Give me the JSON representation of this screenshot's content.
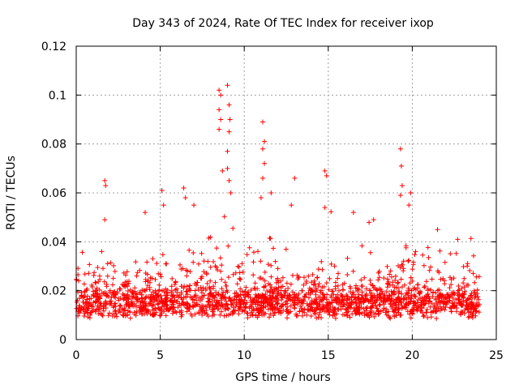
{
  "chart_data": {
    "type": "scatter",
    "title": "Day 343 of 2024, Rate Of TEC Index for receiver ixop",
    "xlabel": "GPS time / hours",
    "ylabel": "ROTI / TECUs",
    "xlim": [
      0,
      25
    ],
    "ylim": [
      0,
      0.12
    ],
    "x_ticks": [
      0,
      5,
      10,
      15,
      20,
      25
    ],
    "x_tick_labels": [
      "0",
      "5",
      "10",
      "15",
      "20",
      "25"
    ],
    "y_ticks": [
      0,
      0.02,
      0.04,
      0.06,
      0.08,
      0.1,
      0.12
    ],
    "y_tick_labels": [
      "0",
      "0.02",
      "0.04",
      "0.06",
      "0.08",
      "0.1",
      "0.12"
    ],
    "grid": true,
    "marker": "+",
    "series": [
      {
        "name": "ROTI",
        "color": "#ff0000",
        "x_range": [
          0,
          24
        ],
        "typical_band": [
          0.005,
          0.035
        ],
        "outliers": [
          {
            "x": 1.7,
            "y": 0.065
          },
          {
            "x": 1.75,
            "y": 0.063
          },
          {
            "x": 1.7,
            "y": 0.049
          },
          {
            "x": 4.1,
            "y": 0.052
          },
          {
            "x": 5.1,
            "y": 0.061
          },
          {
            "x": 5.2,
            "y": 0.055
          },
          {
            "x": 6.4,
            "y": 0.062
          },
          {
            "x": 6.5,
            "y": 0.058
          },
          {
            "x": 7.0,
            "y": 0.055
          },
          {
            "x": 8.5,
            "y": 0.102
          },
          {
            "x": 8.6,
            "y": 0.1
          },
          {
            "x": 8.5,
            "y": 0.094
          },
          {
            "x": 8.6,
            "y": 0.09
          },
          {
            "x": 8.5,
            "y": 0.086
          },
          {
            "x": 8.7,
            "y": 0.069
          },
          {
            "x": 9.0,
            "y": 0.104
          },
          {
            "x": 9.1,
            "y": 0.096
          },
          {
            "x": 9.15,
            "y": 0.09
          },
          {
            "x": 9.1,
            "y": 0.085
          },
          {
            "x": 9.0,
            "y": 0.077
          },
          {
            "x": 9.0,
            "y": 0.07
          },
          {
            "x": 9.1,
            "y": 0.065
          },
          {
            "x": 9.2,
            "y": 0.06
          },
          {
            "x": 11.1,
            "y": 0.089
          },
          {
            "x": 11.2,
            "y": 0.081
          },
          {
            "x": 11.1,
            "y": 0.078
          },
          {
            "x": 11.2,
            "y": 0.072
          },
          {
            "x": 11.1,
            "y": 0.066
          },
          {
            "x": 11.0,
            "y": 0.058
          },
          {
            "x": 11.6,
            "y": 0.06
          },
          {
            "x": 12.8,
            "y": 0.055
          },
          {
            "x": 13.0,
            "y": 0.066
          },
          {
            "x": 14.8,
            "y": 0.069
          },
          {
            "x": 14.9,
            "y": 0.067
          },
          {
            "x": 14.8,
            "y": 0.054
          },
          {
            "x": 16.5,
            "y": 0.052
          },
          {
            "x": 17.7,
            "y": 0.049
          },
          {
            "x": 19.3,
            "y": 0.078
          },
          {
            "x": 19.35,
            "y": 0.071
          },
          {
            "x": 19.4,
            "y": 0.063
          },
          {
            "x": 19.3,
            "y": 0.059
          },
          {
            "x": 19.8,
            "y": 0.055
          },
          {
            "x": 19.9,
            "y": 0.06
          },
          {
            "x": 21.5,
            "y": 0.045
          },
          {
            "x": 22.7,
            "y": 0.041
          }
        ]
      }
    ]
  }
}
